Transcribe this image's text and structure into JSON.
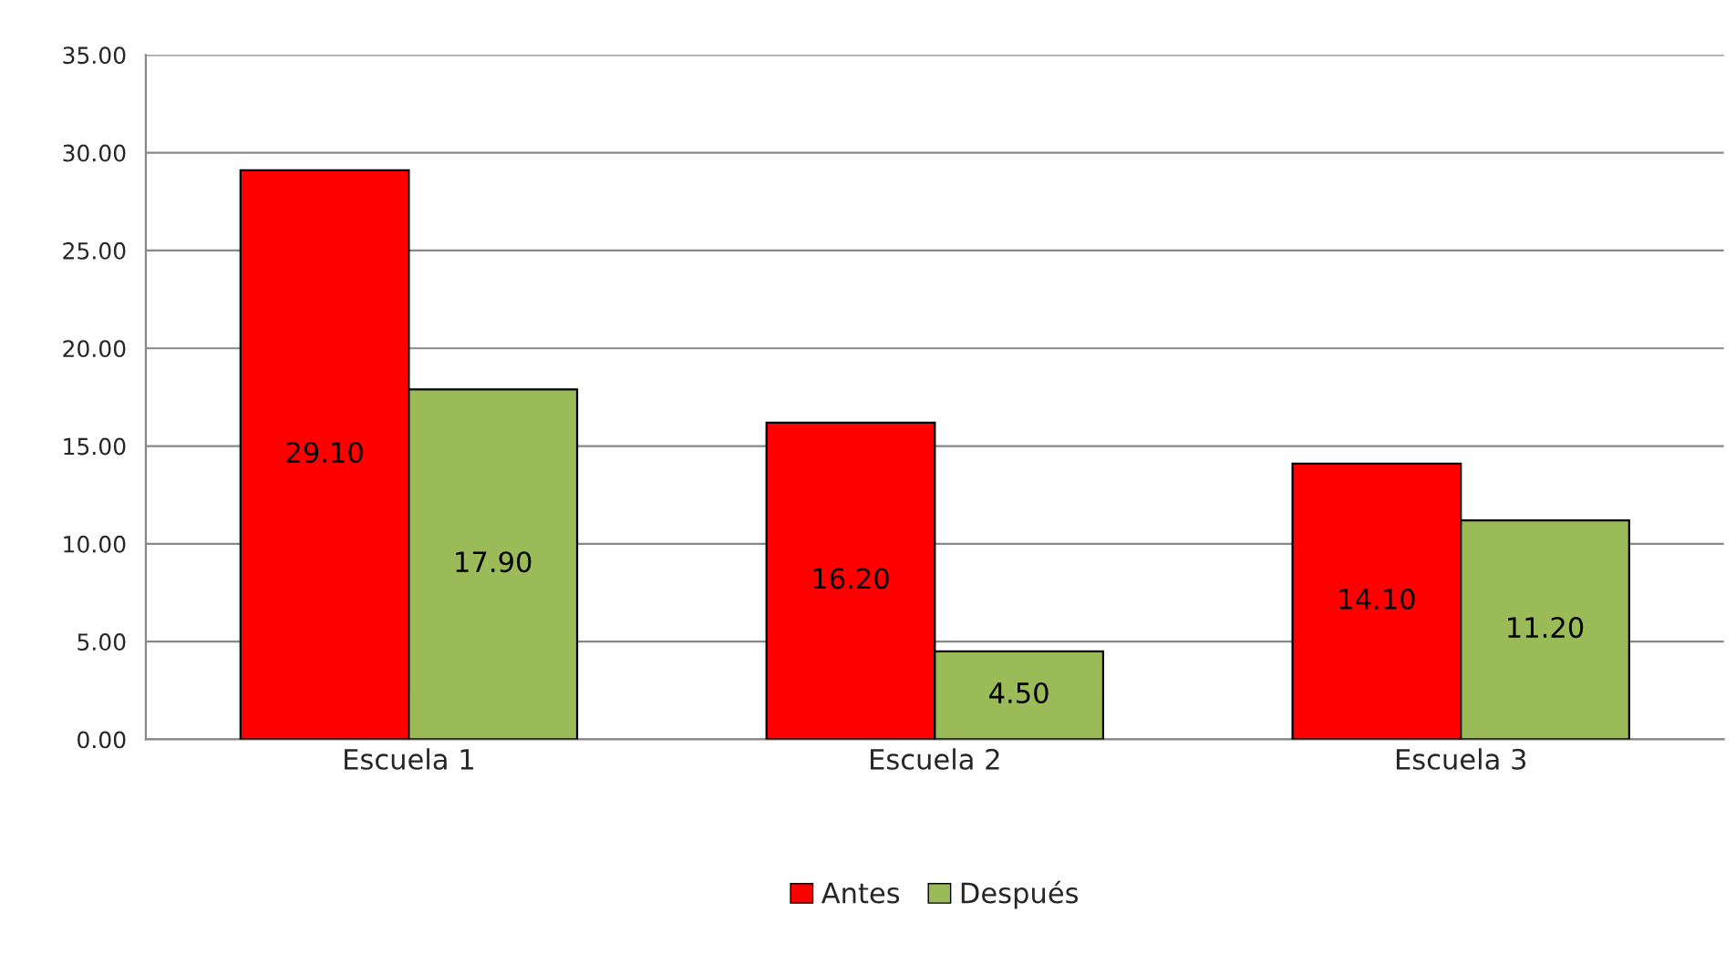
{
  "chart_data": {
    "type": "bar",
    "categories": [
      "Escuela 1",
      "Escuela 2",
      "Escuela 3"
    ],
    "series": [
      {
        "name": "Antes",
        "color": "#ff0000",
        "values": [
          29.1,
          16.2,
          14.1
        ],
        "value_labels": [
          "29.10",
          "16.20",
          "14.10"
        ]
      },
      {
        "name": "Después",
        "color": "#9bbb59",
        "values": [
          17.9,
          4.5,
          11.2
        ],
        "value_labels": [
          "17.90",
          "4.50",
          "11.20"
        ]
      }
    ],
    "ylim": [
      0,
      35
    ],
    "yticks": [
      {
        "value": 0,
        "label": "0.00"
      },
      {
        "value": 5,
        "label": "5.00"
      },
      {
        "value": 10,
        "label": "10.00"
      },
      {
        "value": 15,
        "label": "15.00"
      },
      {
        "value": 20,
        "label": "20.00"
      },
      {
        "value": 25,
        "label": "25.00"
      },
      {
        "value": 30,
        "label": "30.00"
      },
      {
        "value": 35,
        "label": "35.00"
      }
    ],
    "grid": "y",
    "legend": "bottom"
  }
}
